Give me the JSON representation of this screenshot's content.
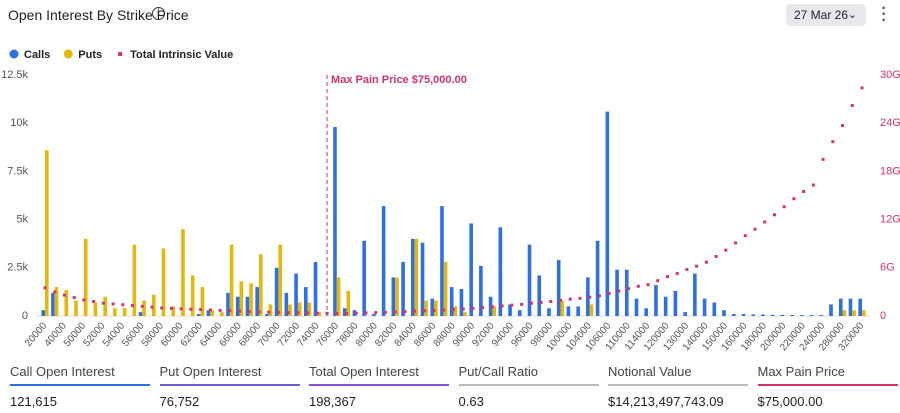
{
  "chart_data": {
    "type": "bar",
    "title": "Open Interest By Strike Price",
    "expiry": "27 Mar 26",
    "categories": [
      "20000",
      null,
      "40000",
      null,
      "50000",
      null,
      "52000",
      null,
      "54000",
      null,
      "56000",
      null,
      "58000",
      null,
      "60000",
      null,
      "62000",
      null,
      "64000",
      null,
      "66000",
      null,
      "68000",
      null,
      "70000",
      null,
      "72000",
      null,
      "74000",
      null,
      "76000",
      null,
      "78000",
      null,
      "80000",
      null,
      "82000",
      null,
      "84000",
      null,
      "86000",
      null,
      "88000",
      null,
      "90000",
      null,
      "92000",
      null,
      "94000",
      null,
      "96000",
      null,
      "98000",
      null,
      "100000",
      null,
      "104000",
      null,
      "106000",
      null,
      "110000",
      null,
      "114000",
      null,
      "120000",
      null,
      "130000",
      null,
      "140000",
      null,
      "150000",
      null,
      "160000",
      null,
      "180000",
      null,
      "200000",
      null,
      "220000",
      null,
      "240000",
      null,
      "280000",
      null,
      "320000"
    ],
    "series": [
      {
        "name": "Calls",
        "color": "#2f6fe4",
        "values": [
          300,
          1200,
          0,
          0,
          0,
          0,
          0,
          0,
          0,
          0,
          200,
          0,
          0,
          0,
          0,
          0,
          100,
          300,
          0,
          1200,
          1000,
          1000,
          1500,
          100,
          2500,
          1200,
          2200,
          1500,
          2800,
          0,
          9800,
          400,
          300,
          3900,
          100,
          5700,
          2000,
          2800,
          4000,
          3800,
          900,
          5700,
          1500,
          1400,
          4800,
          2600,
          1000,
          4600,
          600,
          300,
          3700,
          2100,
          400,
          2900,
          500,
          500,
          2000,
          3900,
          10600,
          2400,
          2400,
          900,
          400,
          1600,
          1000,
          1300,
          200,
          2200,
          900,
          700,
          300,
          100,
          100,
          80,
          80,
          60,
          60,
          50,
          50,
          50,
          50,
          600,
          900,
          900,
          900
        ]
      },
      {
        "name": "Puts",
        "color": "#e4b80a",
        "values": [
          8600,
          1500,
          1350,
          800,
          4000,
          700,
          1000,
          400,
          400,
          3700,
          800,
          1100,
          3500,
          500,
          4500,
          2100,
          1500,
          300,
          200,
          3700,
          1800,
          1700,
          3200,
          600,
          3700,
          600,
          700,
          700,
          200,
          0,
          2000,
          1300,
          0,
          0,
          0,
          0,
          2000,
          0,
          4000,
          800,
          800,
          2800,
          500,
          200,
          0,
          0,
          500,
          0,
          0,
          0,
          0,
          0,
          0,
          800,
          0,
          0,
          600,
          0,
          0,
          0,
          0,
          0,
          0,
          0,
          0,
          0,
          0,
          0,
          0,
          0,
          0,
          0,
          0,
          0,
          0,
          0,
          0,
          0,
          0,
          0,
          0,
          0,
          300,
          300,
          300
        ]
      },
      {
        "name": "Total Intrinsic Value",
        "color": "#d6336c",
        "type": "scatter",
        "axis": "y2",
        "values": [
          3.5,
          3.0,
          2.6,
          2.3,
          2.0,
          1.8,
          1.6,
          1.5,
          1.4,
          1.3,
          1.2,
          1.1,
          1.0,
          0.95,
          0.9,
          0.85,
          0.8,
          0.75,
          0.7,
          0.65,
          0.6,
          0.55,
          0.5,
          0.48,
          0.45,
          0.42,
          0.4,
          0.38,
          0.35,
          0.33,
          0.3,
          0.32,
          0.35,
          0.38,
          0.42,
          0.46,
          0.5,
          0.55,
          0.6,
          0.65,
          0.7,
          0.75,
          0.8,
          0.88,
          0.95,
          1.05,
          1.15,
          1.25,
          1.35,
          1.45,
          1.6,
          1.7,
          1.8,
          1.95,
          2.1,
          2.2,
          2.35,
          2.5,
          2.8,
          3.1,
          3.4,
          3.7,
          3.9,
          4.4,
          4.9,
          5.3,
          5.8,
          6.2,
          6.7,
          7.4,
          8.2,
          9.1,
          10.0,
          10.8,
          11.7,
          12.6,
          13.6,
          14.6,
          15.5,
          16.3,
          19.5,
          21.7,
          23.7,
          26.2,
          28.4
        ]
      }
    ],
    "ylim": [
      0,
      12500
    ],
    "yticks": [
      0,
      {
        "value": 2500,
        "label": "2.5k"
      },
      {
        "value": 5000,
        "label": "5k"
      },
      {
        "value": 7500,
        "label": "7.5k"
      },
      {
        "value": 10000,
        "label": "10k"
      },
      {
        "value": 12500,
        "label": "12.5k"
      }
    ],
    "y2lim": [
      0,
      30
    ],
    "y2ticks": [
      0,
      {
        "value": 6,
        "label": "6G"
      },
      {
        "value": 12,
        "label": "12G"
      },
      {
        "value": 18,
        "label": "18G"
      },
      {
        "value": 24,
        "label": "24G"
      },
      {
        "value": 30,
        "label": "30G"
      }
    ],
    "grid": false,
    "legend": "top-left",
    "max_pain": {
      "label": "Max Pain Price $75,000.00",
      "strike": 75000,
      "color": "#d6336c"
    },
    "stats": [
      {
        "label": "Call Open Interest",
        "value": "121,615",
        "color": "#2f6fe4"
      },
      {
        "label": "Put Open Interest",
        "value": "76,752",
        "color": "#6f5ed3"
      },
      {
        "label": "Total Open Interest",
        "value": "198,367",
        "color": "#8a4fd8"
      },
      {
        "label": "Put/Call Ratio",
        "value": "0.63",
        "color": "#bbbbbb"
      },
      {
        "label": "Notional Value",
        "value": "$14,213,497,743.09",
        "color": "#bbbbbb"
      },
      {
        "label": "Max Pain Price",
        "value": "$75,000.00",
        "color": "#d6336c"
      }
    ]
  }
}
